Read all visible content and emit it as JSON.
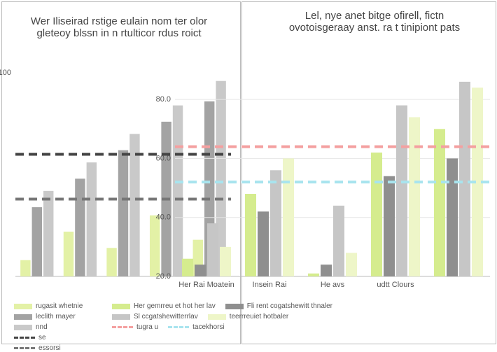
{
  "chart_data": [
    {
      "type": "bar",
      "title": "Wer Iliseirad rstige eulain nom ter olor gleteoy blssn in n rtulticor rdus roict",
      "categories": [
        null,
        null,
        null,
        null,
        null
      ],
      "series": [
        {
          "name": "rugasit whetnie",
          "color": "#e3f1a6",
          "values": [
            8,
            22,
            14,
            30,
            18
          ]
        },
        {
          "name": "leclith rnayer",
          "color": "#a3a3a3",
          "values": [
            34,
            48,
            62,
            76,
            86
          ]
        },
        {
          "name": "nnd",
          "color": "#c9c9c9",
          "values": [
            42,
            56,
            70,
            84,
            96
          ]
        }
      ],
      "lines": [
        {
          "name": "se",
          "color": "#444444",
          "value": 60
        },
        {
          "name": "essorsi",
          "color": "#777777",
          "value": 38
        }
      ],
      "ylim": [
        0,
        110
      ],
      "yticks": [
        {
          "value": 100,
          "label": "100"
        }
      ],
      "grid": false
    },
    {
      "type": "bar",
      "title": "Lel, nye anet bitge ofirell, fictn ovotoisgeraay anst. ra t tinipiont pats",
      "categories": [
        "Her Rai Moatein",
        "Insein Rai",
        "He avs",
        "udtt Clours",
        null
      ],
      "series": [
        {
          "name": "Her gemrreu et hot her lav",
          "color": "#d5ec8e",
          "values": [
            26,
            48,
            21,
            62,
            70
          ]
        },
        {
          "name": "Fli rent cogatshewitt thnaler",
          "color": "#8f8f8f",
          "values": [
            24,
            42,
            24,
            54,
            60
          ]
        },
        {
          "name": "Sl ccgatshewitterrlav",
          "color": "#c6c6c6",
          "values": [
            38,
            56,
            44,
            78,
            86
          ]
        },
        {
          "name": "teerrreuiet hotbaler",
          "color": "#eef6c8",
          "values": [
            30,
            60,
            28,
            74,
            84
          ]
        }
      ],
      "lines": [
        {
          "name": "tugra u",
          "color": "#f4a0a0",
          "value": 64
        },
        {
          "name": "tacekhorsi",
          "color": "#a8e4ee",
          "value": 52
        }
      ],
      "ylim": [
        20,
        90
      ],
      "yticks": [
        {
          "value": 20,
          "label": "20.0"
        },
        {
          "value": 40,
          "label": "40.0"
        },
        {
          "value": 60,
          "label": "60.0"
        },
        {
          "value": 80,
          "label": "80.0"
        }
      ],
      "grid": true
    }
  ]
}
